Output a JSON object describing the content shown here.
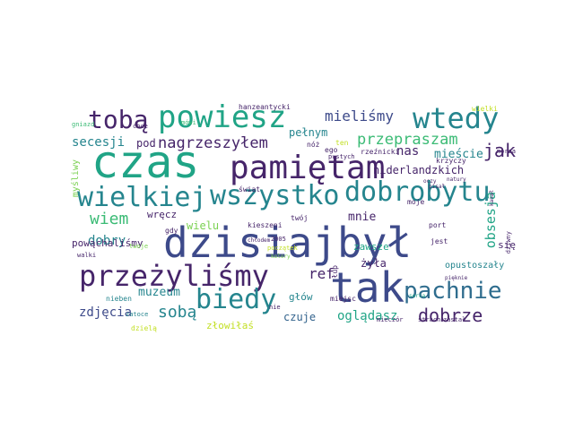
{
  "palette": {
    "dark_purple": "#46256a",
    "indigo": "#3d4a8a",
    "blue": "#33638d",
    "steel": "#2f6d8e",
    "teal": "#25858e",
    "green_teal": "#20a486",
    "green": "#3bbb75",
    "lime": "#7ad151",
    "yellow": "#c2df23"
  },
  "words": [
    {
      "text": "czas"
    },
    {
      "text": "dzisiaj"
    },
    {
      "text": "był"
    },
    {
      "text": "tak"
    },
    {
      "text": "pamiętam"
    },
    {
      "text": "przeżyliśmy"
    },
    {
      "text": "powiesz"
    },
    {
      "text": "wtedy"
    },
    {
      "text": "wszystko"
    },
    {
      "text": "dobrobytu"
    },
    {
      "text": "wielkiej"
    },
    {
      "text": "tobą"
    },
    {
      "text": "biedy"
    },
    {
      "text": "pachnie"
    },
    {
      "text": "przepraszam"
    },
    {
      "text": "nagrzeszyłem"
    },
    {
      "text": "mieliśmy"
    },
    {
      "text": "jak"
    },
    {
      "text": "dobrze"
    },
    {
      "text": "wiem"
    },
    {
      "text": "secesji"
    },
    {
      "text": "sobą"
    },
    {
      "text": "zdjęcia"
    },
    {
      "text": "obsesja"
    },
    {
      "text": "muzeum"
    },
    {
      "text": "dobry"
    },
    {
      "text": "ref"
    },
    {
      "text": "mnie"
    },
    {
      "text": "pełnym"
    },
    {
      "text": "niderlandzkich"
    },
    {
      "text": "mieście"
    },
    {
      "text": "nas"
    },
    {
      "text": "pod"
    },
    {
      "text": "wielu"
    },
    {
      "text": "żyła"
    },
    {
      "text": "oglądasz"
    },
    {
      "text": "czuje"
    },
    {
      "text": "złowiłaś"
    },
    {
      "text": "głów"
    },
    {
      "text": "wręcz"
    },
    {
      "text": "powąchaliśmy"
    },
    {
      "text": "zawsze"
    },
    {
      "text": "się"
    },
    {
      "text": "opustoszały"
    },
    {
      "text": "myśliwy"
    },
    {
      "text": "dzielą"
    },
    {
      "text": "gdy"
    },
    {
      "text": "twoje"
    },
    {
      "text": "walki"
    },
    {
      "text": "nieben"
    },
    {
      "text": "zatoce"
    },
    {
      "text": "kieszeni"
    },
    {
      "text": "twój"
    },
    {
      "text": "miejsc"
    },
    {
      "text": "moje"
    },
    {
      "text": "port"
    },
    {
      "text": "jest"
    },
    {
      "text": "świat"
    },
    {
      "text": "nóż"
    },
    {
      "text": "ten"
    },
    {
      "text": "ego"
    },
    {
      "text": "rzeźnicki"
    },
    {
      "text": "krzyczy"
    },
    {
      "text": "hanzeantycki"
    },
    {
      "text": "mówi"
    },
    {
      "text": "wielki"
    },
    {
      "text": "pustych"
    },
    {
      "text": "2005"
    },
    {
      "text": "początek"
    },
    {
      "text": "łup"
    },
    {
      "text": "mieczór"
    },
    {
      "text": "strach"
    },
    {
      "text": "zastał"
    },
    {
      "text": "chce"
    },
    {
      "text": "gniazd"
    },
    {
      "text": "nie"
    },
    {
      "text": "morza"
    },
    {
      "text": "dziwny"
    },
    {
      "text": "kanał"
    },
    {
      "text": "serca"
    },
    {
      "text": "oczy"
    },
    {
      "text": "natury"
    },
    {
      "text": "pisał"
    },
    {
      "text": "chłodem"
    },
    {
      "text": "pięknie"
    },
    {
      "text": "kolory"
    }
  ]
}
